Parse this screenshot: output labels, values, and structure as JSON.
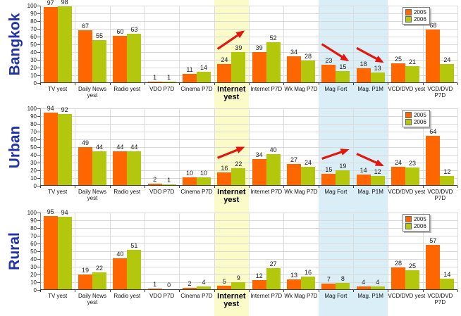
{
  "page": {
    "background": "#FFFFFF"
  },
  "colors": {
    "series_2005": "#FF6600",
    "series_2006": "#B3C80D",
    "row_title": "#2233AA",
    "arrow": "#E3170D",
    "gridline": "#D9D9D9",
    "highlight_yellow": "#FBFBC8",
    "highlight_blue": "#D9EEF7"
  },
  "legend": {
    "position": "top-right",
    "items": [
      {
        "label": "2005",
        "color": "#FF6600"
      },
      {
        "label": "2006",
        "color": "#B3C80D"
      }
    ]
  },
  "y_axis": {
    "min": 0,
    "max": 100,
    "ticks": [
      0,
      10,
      20,
      30,
      40,
      50,
      60,
      70,
      80,
      90,
      100
    ],
    "grid": true
  },
  "category_display": [
    {
      "lines": [
        "TV yest"
      ],
      "bold": false
    },
    {
      "lines": [
        "Daily News",
        "yest"
      ],
      "bold": false
    },
    {
      "lines": [
        "Radio yest"
      ],
      "bold": false
    },
    {
      "lines": [
        "VDO P7D"
      ],
      "bold": false
    },
    {
      "lines": [
        "Cinema P7D"
      ],
      "bold": false
    },
    {
      "lines": [
        "Internet",
        "yest"
      ],
      "bold": true
    },
    {
      "lines": [
        "Internet P7D"
      ],
      "bold": false
    },
    {
      "lines": [
        "Wk Mag P7D"
      ],
      "bold": false
    },
    {
      "lines": [
        "Mag Fort"
      ],
      "bold": false
    },
    {
      "lines": [
        "Mag. P1M"
      ],
      "bold": false
    },
    {
      "lines": [
        "VCD/DVD yest"
      ],
      "bold": false
    },
    {
      "lines": [
        "VCD/DVD",
        "P7D"
      ],
      "bold": false
    }
  ],
  "highlights": [
    {
      "name": "internet-yest-highlight",
      "color": "#FBFBC8",
      "category": "Internet yest",
      "category_start_index": 5,
      "category_count": 1
    },
    {
      "name": "magazine-highlight",
      "color": "#D9EEF7",
      "category": "Mag Fort / Mag. P1M",
      "category_start_index": 8,
      "category_count": 2
    }
  ],
  "chart_data": [
    {
      "type": "bar",
      "title": "Bangkok",
      "ylim": [
        0,
        100
      ],
      "categories": [
        "TV yest",
        "Daily News yest",
        "Radio yest",
        "VDO P7D",
        "Cinema P7D",
        "Internet yest",
        "Internet P7D",
        "Wk Mag P7D",
        "Mag Fort",
        "Mag. P1M",
        "VCD/DVD yest",
        "VCD/DVD P7D"
      ],
      "series": [
        {
          "name": "2005",
          "values": [
            97,
            67,
            60,
            1,
            11,
            24,
            39,
            34,
            23,
            18,
            25,
            68
          ]
        },
        {
          "name": "2006",
          "values": [
            98,
            55,
            63,
            1,
            14,
            39,
            52,
            28,
            15,
            13,
            21,
            24
          ]
        }
      ],
      "annotations": [
        {
          "category": "Internet yest",
          "direction": "up"
        },
        {
          "category": "Mag Fort",
          "direction": "down"
        },
        {
          "category": "Mag. P1M",
          "direction": "down"
        }
      ]
    },
    {
      "type": "bar",
      "title": "Urban",
      "ylim": [
        0,
        100
      ],
      "categories": [
        "TV yest",
        "Daily News yest",
        "Radio yest",
        "VDO P7D",
        "Cinema P7D",
        "Internet yest",
        "Internet P7D",
        "Wk Mag P7D",
        "Mag Fort",
        "Mag. P1M",
        "VCD/DVD yest",
        "VCD/DVD P7D"
      ],
      "series": [
        {
          "name": "2005",
          "values": [
            94,
            49,
            44,
            2,
            10,
            16,
            34,
            27,
            15,
            14,
            24,
            64
          ]
        },
        {
          "name": "2006",
          "values": [
            92,
            44,
            44,
            1,
            10,
            22,
            40,
            24,
            19,
            12,
            23,
            12
          ]
        }
      ],
      "annotations": [
        {
          "category": "Internet yest",
          "direction": "up"
        },
        {
          "category": "Mag Fort",
          "direction": "up"
        },
        {
          "category": "Mag. P1M",
          "direction": "down"
        }
      ]
    },
    {
      "type": "bar",
      "title": "Rural",
      "ylim": [
        0,
        100
      ],
      "categories": [
        "TV yest",
        "Daily News yest",
        "Radio yest",
        "VDO P7D",
        "Cinema P7D",
        "Internet yest",
        "Internet P7D",
        "Wk Mag P7D",
        "Mag Fort",
        "Mag. P1M",
        "VCD/DVD yest",
        "VCD/DVD P7D"
      ],
      "series": [
        {
          "name": "2005",
          "values": [
            95,
            19,
            40,
            1,
            2,
            5,
            12,
            13,
            7,
            4,
            28,
            57
          ]
        },
        {
          "name": "2006",
          "values": [
            94,
            22,
            51,
            0,
            4,
            9,
            27,
            16,
            8,
            4,
            25,
            14
          ]
        }
      ],
      "annotations": []
    }
  ]
}
